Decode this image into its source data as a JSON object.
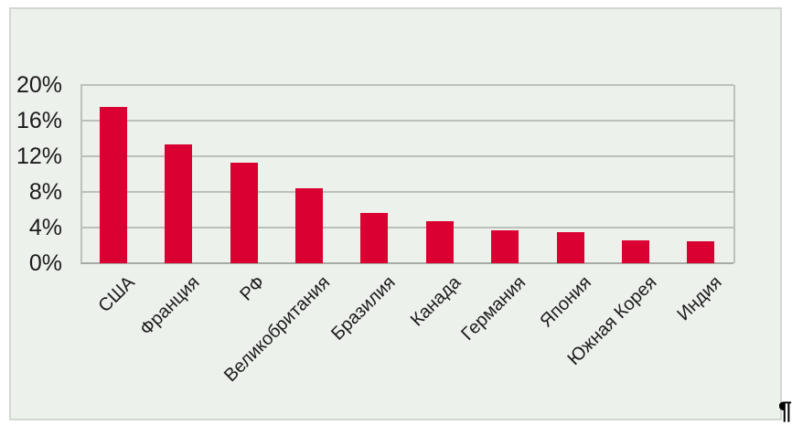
{
  "page": {
    "paragraph_mark": "¶"
  },
  "colors": {
    "bar": "#da0132",
    "chart_background": "#edf1ec",
    "chart_border": "#d3d7d2",
    "gridline": "#bcc0bb",
    "axis_line": "#a7aba6",
    "text": "#1b1b1b",
    "page_background": "#ffffff"
  },
  "chart_data": {
    "type": "bar",
    "categories": [
      "США",
      "Франция",
      "РФ",
      "Великобритания",
      "Бразилия",
      "Канада",
      "Германия",
      "Япония",
      "Южная Корея",
      "Индия"
    ],
    "values": [
      17.5,
      13.3,
      11.3,
      8.4,
      5.6,
      4.7,
      3.7,
      3.5,
      2.6,
      2.5
    ],
    "title": "",
    "xlabel": "",
    "ylabel": "",
    "ylim": [
      0,
      20
    ],
    "ytick_step": 4,
    "ytick_labels": [
      "0%",
      "4%",
      "8%",
      "12%",
      "16%",
      "20%"
    ],
    "grid": true,
    "legend": false,
    "bar_color": "#da0132"
  }
}
